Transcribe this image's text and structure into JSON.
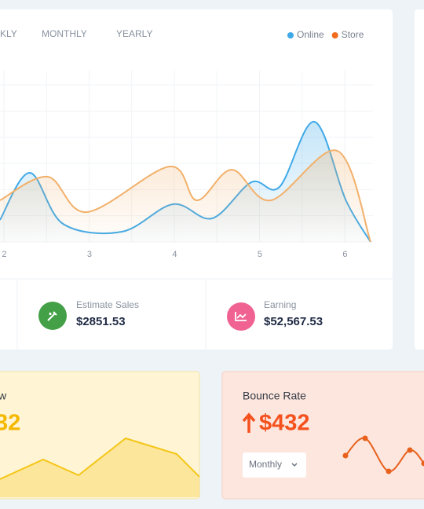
{
  "tabs": [
    "KLY",
    "MONTHLY",
    "YEARLY"
  ],
  "stats": [
    {
      "label": "Estimate Sales",
      "value": "$2851.53"
    },
    {
      "label": "Earning",
      "value": "$52,567.53"
    }
  ],
  "cards": [
    {
      "title": "w",
      "value": "32"
    },
    {
      "title": "Bounce Rate",
      "value": "$432",
      "dropdown": "Monthly"
    }
  ],
  "chart_data": [
    {
      "type": "line",
      "smooth": true,
      "area": true,
      "xlim": [
        1.95,
        6.3
      ],
      "xticks": [
        2,
        3,
        4,
        5,
        6
      ],
      "ylim": [
        0,
        100
      ],
      "grid": true,
      "legend": "top-right",
      "series": [
        {
          "name": "Online",
          "color": "#3fa9e8",
          "x": [
            1.95,
            2.3,
            2.69,
            3.38,
            3.98,
            4.44,
            4.9,
            5.23,
            5.64,
            6.01,
            6.3
          ],
          "values": [
            14,
            44,
            11.5,
            6.5,
            24,
            15,
            38,
            35,
            76.5,
            26.5,
            0
          ]
        },
        {
          "name": "Store",
          "color": "#f2b06a",
          "x": [
            1.95,
            2.51,
            2.97,
            3.94,
            4.26,
            4.67,
            5.13,
            5.91,
            6.3
          ],
          "values": [
            26.5,
            41.5,
            19,
            48,
            26.5,
            46,
            26.5,
            58,
            0
          ]
        }
      ]
    },
    {
      "type": "area",
      "color": "#f5c518",
      "xlim": [
        0,
        255
      ],
      "ylim": [
        0,
        100
      ],
      "x": [
        0,
        55,
        100,
        160,
        225,
        255
      ],
      "values": [
        23,
        48,
        28,
        75,
        55,
        25
      ]
    },
    {
      "type": "line",
      "smooth": true,
      "markers": true,
      "color": "#e8601c",
      "xlim": [
        0,
        100
      ],
      "ylim": [
        0,
        100
      ],
      "x": [
        0,
        25,
        55,
        82,
        100
      ],
      "values": [
        53,
        75,
        33,
        60,
        43
      ]
    }
  ]
}
